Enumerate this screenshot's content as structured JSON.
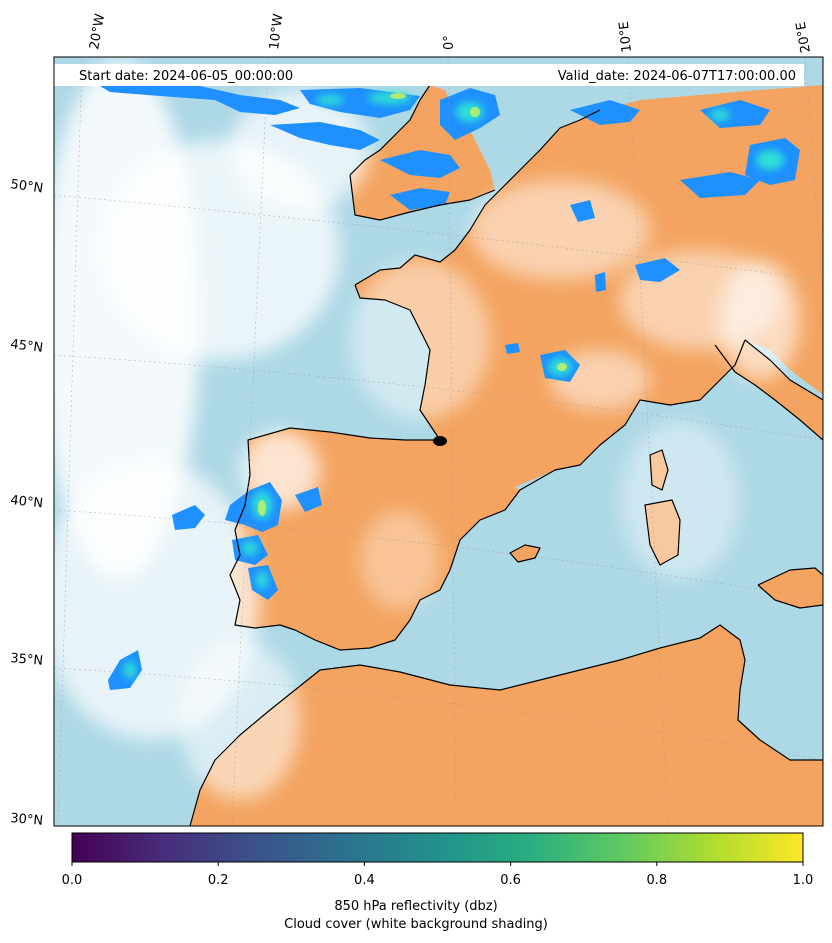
{
  "map": {
    "start_date": "Start date: 2024-06-05_00:00:00",
    "valid_date": "Valid_date: 2024-06-07T17:00:00.00",
    "lon_labels": [
      "20°W",
      "10°W",
      "0°",
      "10°E",
      "20°E"
    ],
    "lat_labels": [
      "50°N",
      "45°N",
      "40°N",
      "35°N",
      "30°N"
    ],
    "colors": {
      "land": "#f4a460",
      "sea": "#add8e6",
      "cloud": "#ffffff",
      "coast": "#000000"
    }
  },
  "colorbar": {
    "colormap": "viridis",
    "range": [
      0.0,
      1.0
    ],
    "tick_labels": [
      "0.0",
      "0.2",
      "0.4",
      "0.6",
      "0.8",
      "1.0"
    ],
    "label_line1": "850 hPa reflectivity (dbz)",
    "label_line2": "Cloud cover (white background shading)"
  }
}
